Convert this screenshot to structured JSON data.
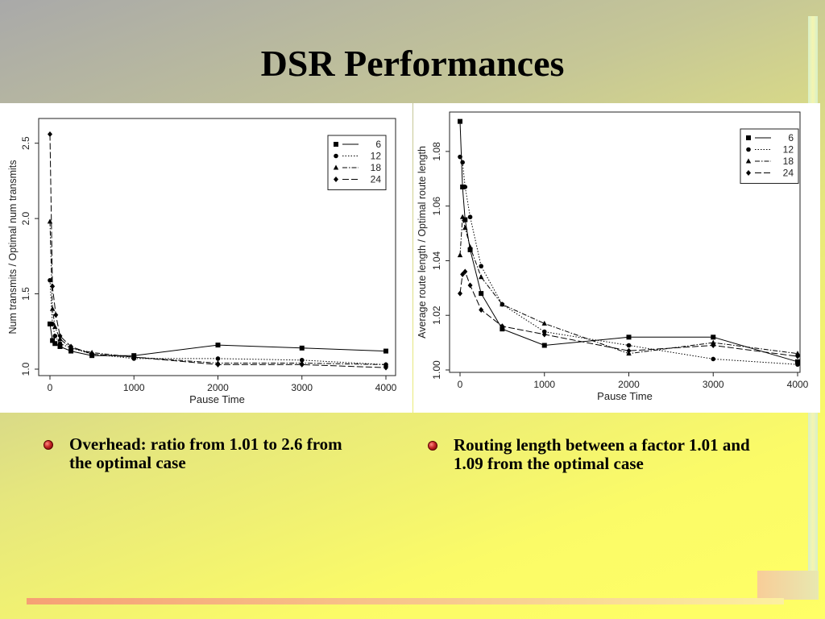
{
  "slide": {
    "title": "DSR Performances",
    "bullets": [
      "Overhead: ratio from 1.01 to 2.6 from the optimal case",
      "Routing length between a factor 1.01 and 1.09 from the optimal case"
    ],
    "colors": {
      "bullet": "#c62828",
      "title": "#000000"
    }
  },
  "chart_data": [
    {
      "type": "line",
      "xlabel": "Pause Time",
      "ylabel": "Num transmits / Optimal num transmits",
      "xlim": [
        0,
        4000
      ],
      "ylim": [
        1.0,
        2.6
      ],
      "xticks": [
        0,
        1000,
        2000,
        3000,
        4000
      ],
      "yticks": [
        1.0,
        1.5,
        2.0,
        2.5
      ],
      "ytick_labels": [
        "1.0",
        "1.5",
        "2.0",
        "2.5"
      ],
      "grid": false,
      "legend_position": "top-right",
      "series": [
        {
          "name": "6",
          "marker": "square",
          "dash": "solid",
          "points": [
            [
              0,
              1.3
            ],
            [
              30,
              1.19
            ],
            [
              60,
              1.17
            ],
            [
              120,
              1.15
            ],
            [
              250,
              1.12
            ],
            [
              500,
              1.09
            ],
            [
              1000,
              1.09
            ],
            [
              2000,
              1.16
            ],
            [
              3000,
              1.14
            ],
            [
              4000,
              1.12
            ]
          ]
        },
        {
          "name": "12",
          "marker": "circle",
          "dash": "dotted",
          "points": [
            [
              0,
              1.59
            ],
            [
              30,
              1.3
            ],
            [
              60,
              1.22
            ],
            [
              120,
              1.17
            ],
            [
              250,
              1.14
            ],
            [
              500,
              1.1
            ],
            [
              1000,
              1.07
            ],
            [
              2000,
              1.07
            ],
            [
              3000,
              1.06
            ],
            [
              4000,
              1.03
            ]
          ]
        },
        {
          "name": "18",
          "marker": "triangle",
          "dash": "dashdot",
          "points": [
            [
              0,
              1.98
            ],
            [
              30,
              1.4
            ],
            [
              60,
              1.28
            ],
            [
              120,
              1.2
            ],
            [
              250,
              1.14
            ],
            [
              500,
              1.11
            ],
            [
              1000,
              1.08
            ],
            [
              2000,
              1.04
            ],
            [
              3000,
              1.04
            ],
            [
              4000,
              1.03
            ]
          ]
        },
        {
          "name": "24",
          "marker": "diamond",
          "dash": "longdash",
          "points": [
            [
              0,
              2.56
            ],
            [
              30,
              1.55
            ],
            [
              70,
              1.36
            ],
            [
              120,
              1.22
            ],
            [
              250,
              1.15
            ],
            [
              500,
              1.1
            ],
            [
              1000,
              1.08
            ],
            [
              2000,
              1.03
            ],
            [
              3000,
              1.03
            ],
            [
              4000,
              1.01
            ]
          ]
        }
      ]
    },
    {
      "type": "line",
      "xlabel": "Pause Time",
      "ylabel": "Average route length / Optimal route length",
      "xlim": [
        0,
        4000
      ],
      "ylim": [
        1.0,
        1.09
      ],
      "xticks": [
        0,
        1000,
        2000,
        3000,
        4000
      ],
      "yticks": [
        1.0,
        1.02,
        1.04,
        1.06,
        1.08
      ],
      "ytick_labels": [
        "1.00",
        "1.02",
        "1.04",
        "1.06",
        "1.08"
      ],
      "grid": false,
      "legend_position": "top-right",
      "series": [
        {
          "name": "6",
          "marker": "square",
          "dash": "solid",
          "points": [
            [
              0,
              1.091
            ],
            [
              30,
              1.067
            ],
            [
              60,
              1.055
            ],
            [
              120,
              1.044
            ],
            [
              250,
              1.028
            ],
            [
              500,
              1.015
            ],
            [
              1000,
              1.009
            ],
            [
              2000,
              1.012
            ],
            [
              3000,
              1.012
            ],
            [
              4000,
              1.003
            ]
          ]
        },
        {
          "name": "12",
          "marker": "circle",
          "dash": "dotted",
          "points": [
            [
              0,
              1.078
            ],
            [
              30,
              1.076
            ],
            [
              60,
              1.067
            ],
            [
              120,
              1.056
            ],
            [
              250,
              1.038
            ],
            [
              500,
              1.024
            ],
            [
              1000,
              1.014
            ],
            [
              2000,
              1.009
            ],
            [
              3000,
              1.004
            ],
            [
              4000,
              1.002
            ]
          ]
        },
        {
          "name": "18",
          "marker": "triangle",
          "dash": "dashdot",
          "points": [
            [
              0,
              1.042
            ],
            [
              30,
              1.056
            ],
            [
              60,
              1.052
            ],
            [
              120,
              1.045
            ],
            [
              250,
              1.034
            ],
            [
              500,
              1.024
            ],
            [
              1000,
              1.017
            ],
            [
              2000,
              1.006
            ],
            [
              3000,
              1.01
            ],
            [
              4000,
              1.006
            ]
          ]
        },
        {
          "name": "24",
          "marker": "diamond",
          "dash": "longdash",
          "points": [
            [
              0,
              1.028
            ],
            [
              30,
              1.035
            ],
            [
              60,
              1.036
            ],
            [
              120,
              1.031
            ],
            [
              250,
              1.022
            ],
            [
              500,
              1.016
            ],
            [
              1000,
              1.013
            ],
            [
              2000,
              1.007
            ],
            [
              3000,
              1.009
            ],
            [
              4000,
              1.005
            ]
          ]
        }
      ]
    }
  ]
}
